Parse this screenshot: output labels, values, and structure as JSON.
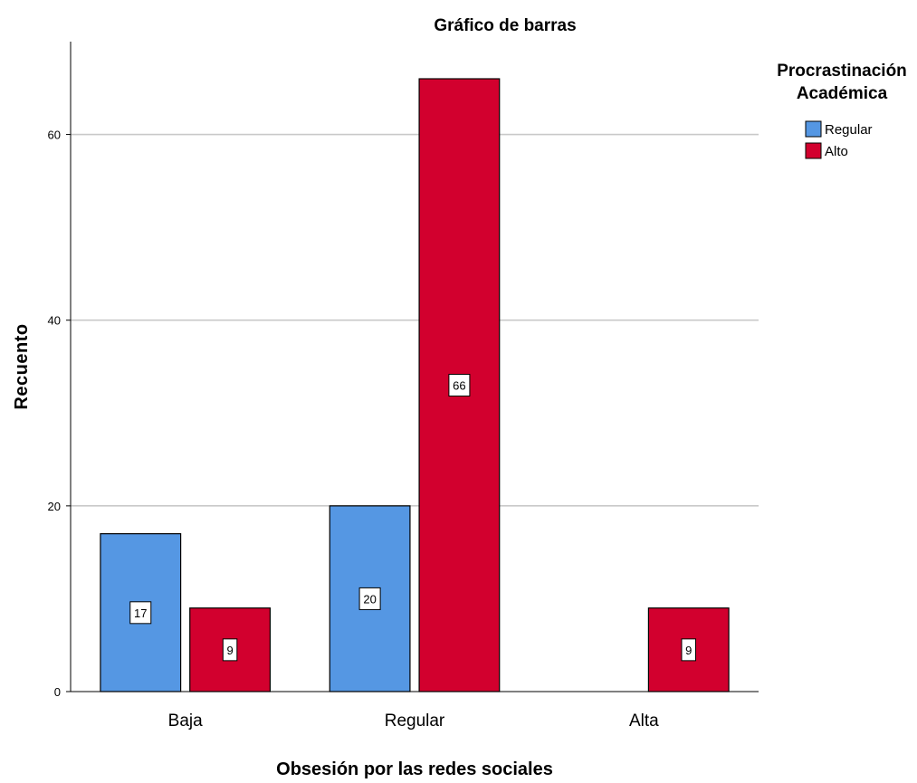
{
  "chart_data": {
    "type": "bar",
    "title": "Gráfico de barras",
    "xlabel": "Obsesión por las redes sociales",
    "ylabel": "Recuento",
    "categories": [
      "Baja",
      "Regular",
      "Alta"
    ],
    "series": [
      {
        "name": "Regular",
        "color": "#5597e3",
        "values": [
          17,
          20,
          null
        ]
      },
      {
        "name": "Alto",
        "color": "#d2002e",
        "values": [
          9,
          66,
          9
        ]
      }
    ],
    "ylim": [
      0,
      70
    ],
    "yticks": [
      0,
      20,
      40,
      60
    ],
    "grid": true,
    "data_labels": true,
    "legend": {
      "title_lines": [
        "Procrastinación",
        "Académica"
      ],
      "position": "top-right"
    }
  }
}
